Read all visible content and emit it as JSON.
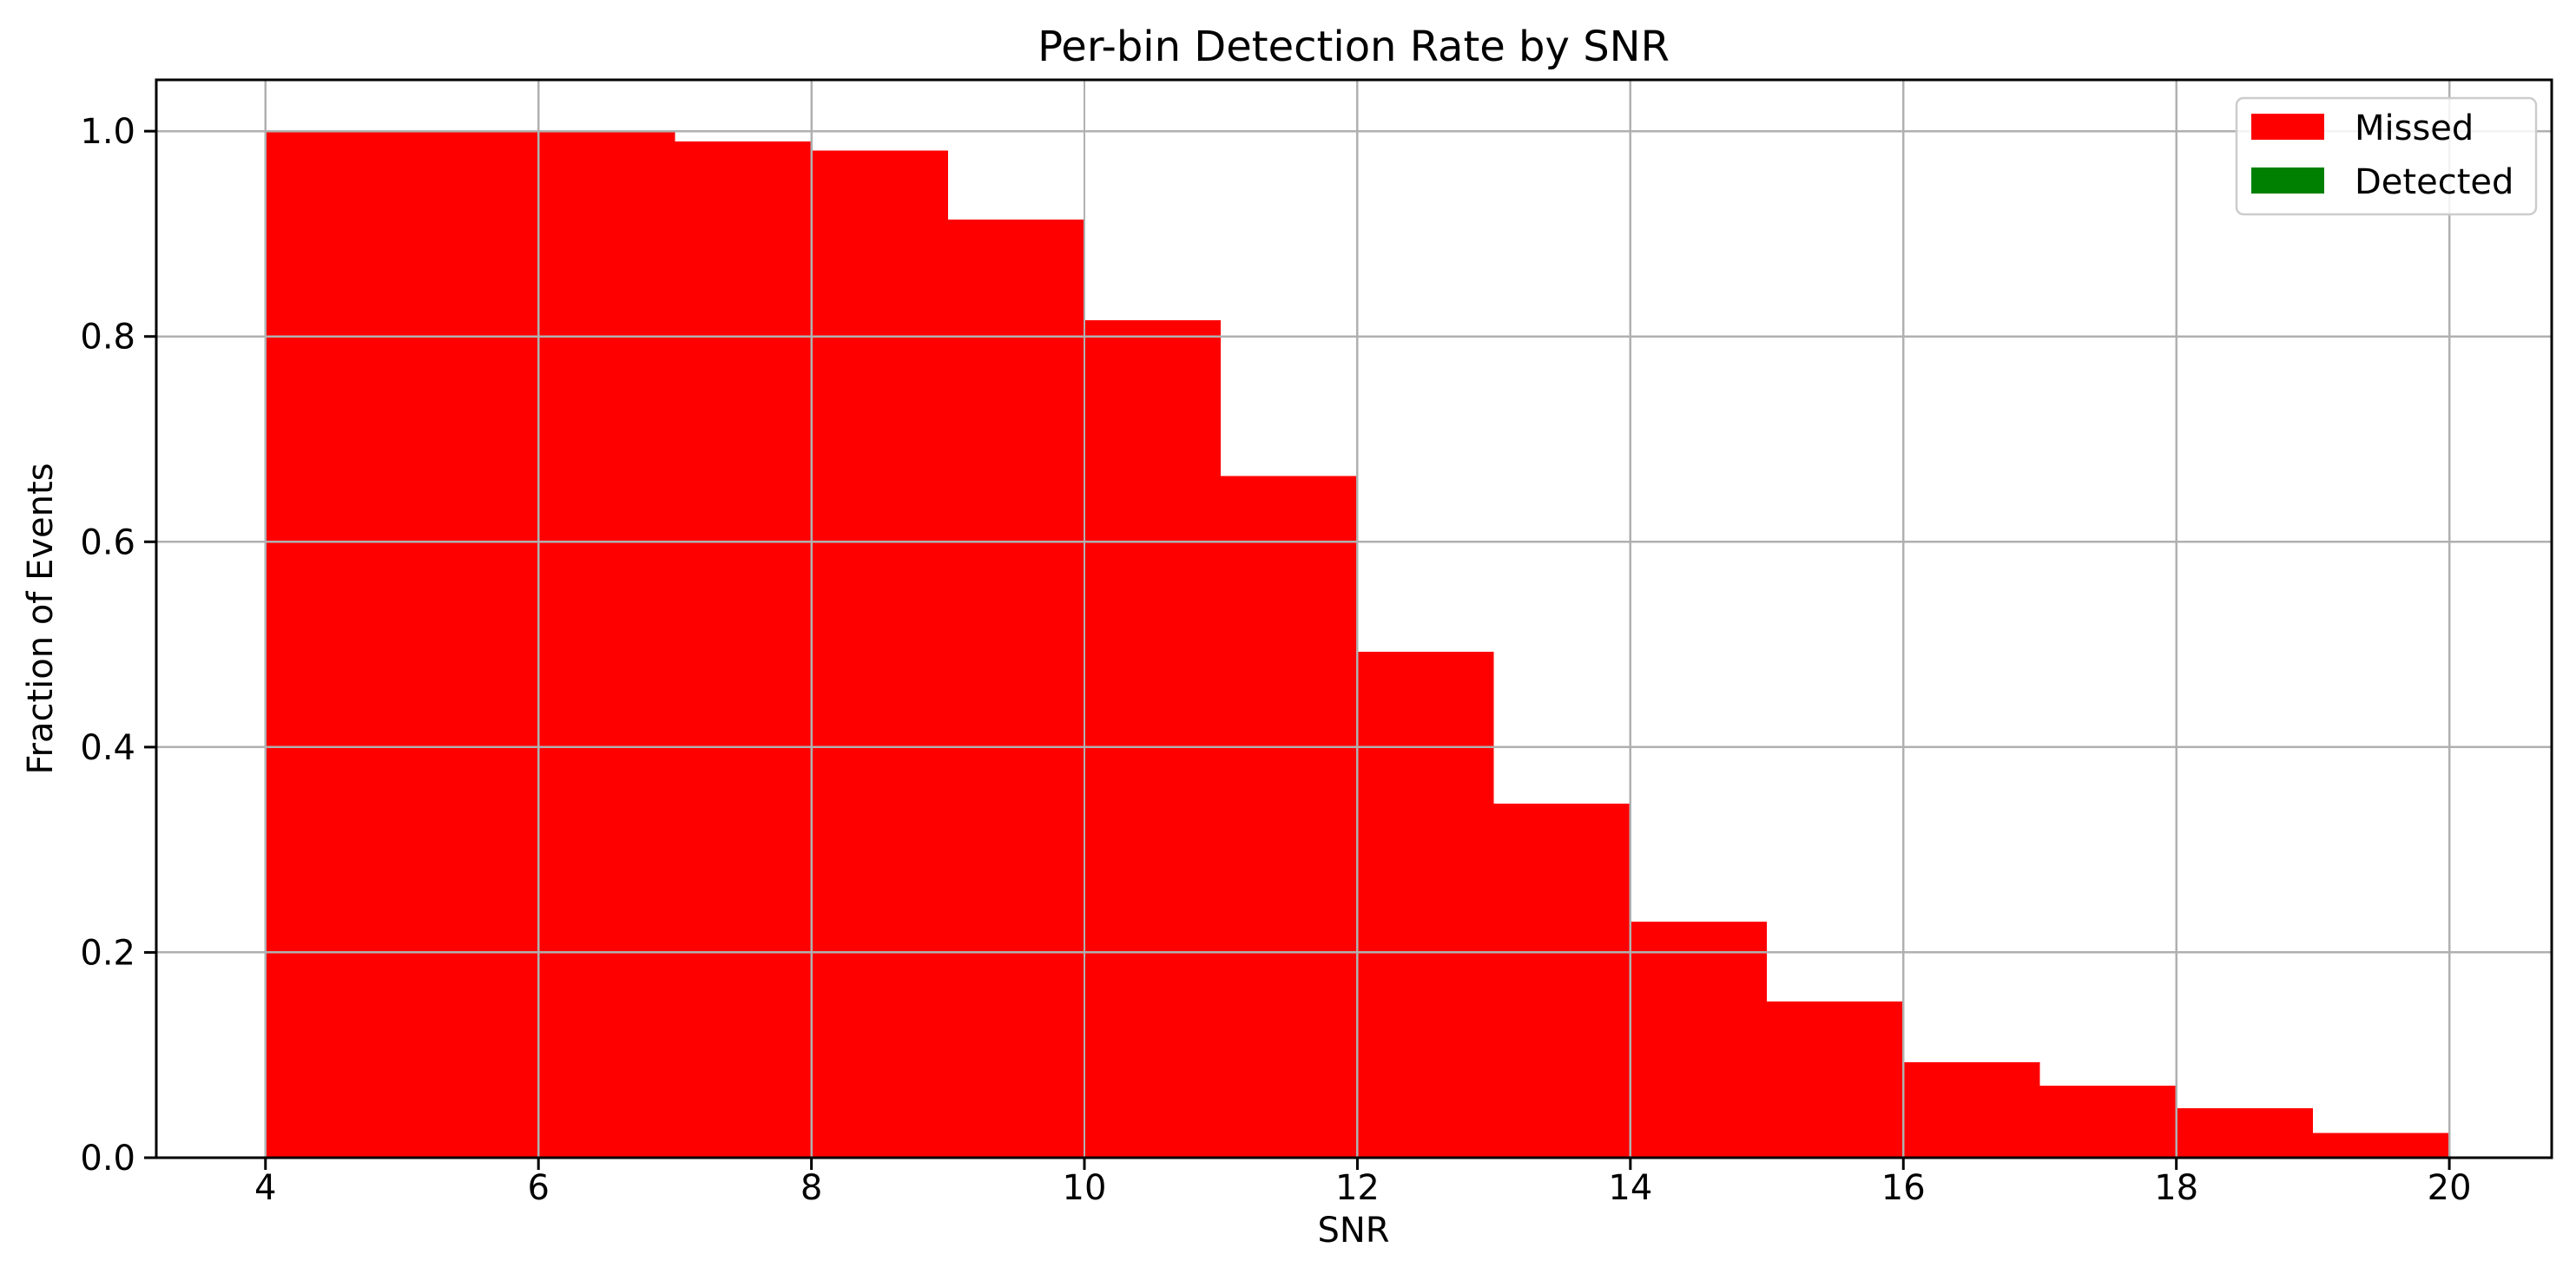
{
  "figure": {
    "background_color": "#ffffff",
    "text_color": "#000000"
  },
  "chart_data": {
    "type": "bar",
    "subtype": "stacked-histogram",
    "title": "Per-bin Detection Rate by SNR",
    "xlabel": "SNR",
    "ylabel": "Fraction of Events",
    "bin_edges": [
      4,
      5,
      6,
      7,
      8,
      9,
      10,
      11,
      12,
      13,
      14,
      15,
      16,
      17,
      18,
      19,
      20
    ],
    "series": [
      {
        "name": "Missed",
        "color": "#ff0000",
        "values": [
          1.0,
          1.0,
          1.0,
          0.99,
          0.981,
          0.914,
          0.816,
          0.664,
          0.493,
          0.345,
          0.23,
          0.152,
          0.093,
          0.07,
          0.048,
          0.024
        ]
      },
      {
        "name": "Detected",
        "color": "#008000",
        "values": [
          0,
          0,
          0,
          0,
          0,
          0,
          0,
          0,
          0,
          0,
          0,
          0,
          0,
          0,
          0,
          0
        ]
      }
    ],
    "xlim": [
      3.2,
      20.75
    ],
    "ylim": [
      0,
      1.05
    ],
    "x_ticks": {
      "values": [
        4,
        6,
        8,
        10,
        12,
        14,
        16,
        18,
        20
      ],
      "labels": [
        "4",
        "6",
        "8",
        "10",
        "12",
        "14",
        "16",
        "18",
        "20"
      ]
    },
    "y_ticks": {
      "values": [
        0.0,
        0.2,
        0.4,
        0.6,
        0.8,
        1.0
      ],
      "labels": [
        "0.0",
        "0.2",
        "0.4",
        "0.6",
        "0.8",
        "1.0"
      ]
    },
    "grid": {
      "visible": true,
      "color": "#b0b0b0",
      "above_bars": true,
      "linewidth": 2.4
    },
    "axes": {
      "spine_color": "#000000",
      "tick_color": "#000000"
    },
    "legend": {
      "position": "upper right",
      "border_color": "#cccccc",
      "background_color": "#ffffff",
      "entries": [
        {
          "label": "Missed",
          "color": "#ff0000"
        },
        {
          "label": "Detected",
          "color": "#008000"
        }
      ]
    }
  }
}
